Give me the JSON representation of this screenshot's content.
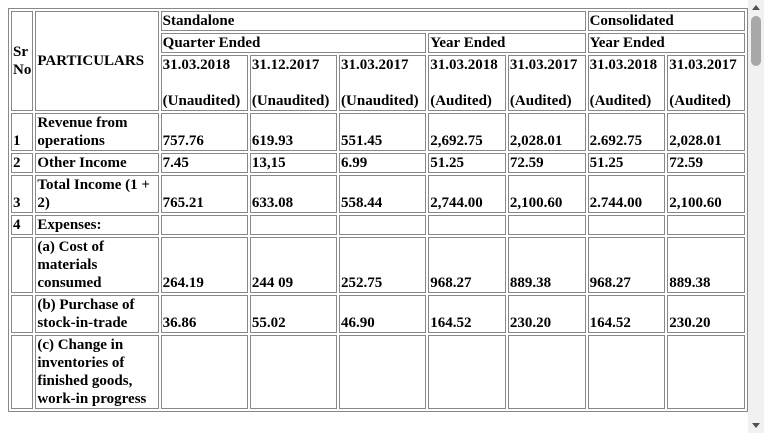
{
  "table": {
    "header": {
      "sr_no": "Sr No",
      "particulars": "PARTICULARS",
      "standalone": "Standalone",
      "consolidated": "Consolidated",
      "quarter_ended": "Quarter Ended",
      "year_ended": "Year Ended",
      "year_ended_consolidated": "Year Ended",
      "columns": [
        {
          "date": "31.03.2018",
          "status": "(Unaudited)"
        },
        {
          "date": "31.12.2017",
          "status": "(Unaudited)"
        },
        {
          "date": "31.03.2017",
          "status": "(Unaudited)"
        },
        {
          "date": "31.03.2018",
          "status": "(Audited)"
        },
        {
          "date": "31.03.2017",
          "status": "(Audited)"
        },
        {
          "date": "31.03.2018",
          "status": "(Audited)"
        },
        {
          "date": "31.03.2017",
          "status": "(Audited)"
        }
      ]
    },
    "rows": [
      {
        "sr": "1",
        "label": "Revenue from operations",
        "values": [
          "757.76",
          "619.93",
          "551.45",
          "2,692.75",
          "2,028.01",
          "2.692.75",
          "2,028.01"
        ]
      },
      {
        "sr": "2",
        "label": "Other Income",
        "values": [
          "7.45",
          "13,15",
          "6.99",
          "51.25",
          "72.59",
          "51.25",
          "72.59"
        ]
      },
      {
        "sr": "3",
        "label": "Total Income (1 + 2)",
        "values": [
          "765.21",
          "633.08",
          "558.44",
          "2,744.00",
          "2,100.60",
          "2.744.00",
          "2,100.60"
        ]
      },
      {
        "sr": "4",
        "label": "Expenses:"
      },
      {
        "label": "(a) Cost of materials consumed",
        "values": [
          "264.19",
          "244 09",
          "252.75",
          "968.27",
          "889.38",
          "968.27",
          "889.38"
        ]
      },
      {
        "label": "(b) Purchase of stock-in-trade",
        "values": [
          "36.86",
          "55.02",
          "46.90",
          "164.52",
          "230.20",
          "164.52",
          "230.20"
        ]
      },
      {
        "label": "(c) Change in inventories of finished goods, work-in progress"
      }
    ]
  }
}
